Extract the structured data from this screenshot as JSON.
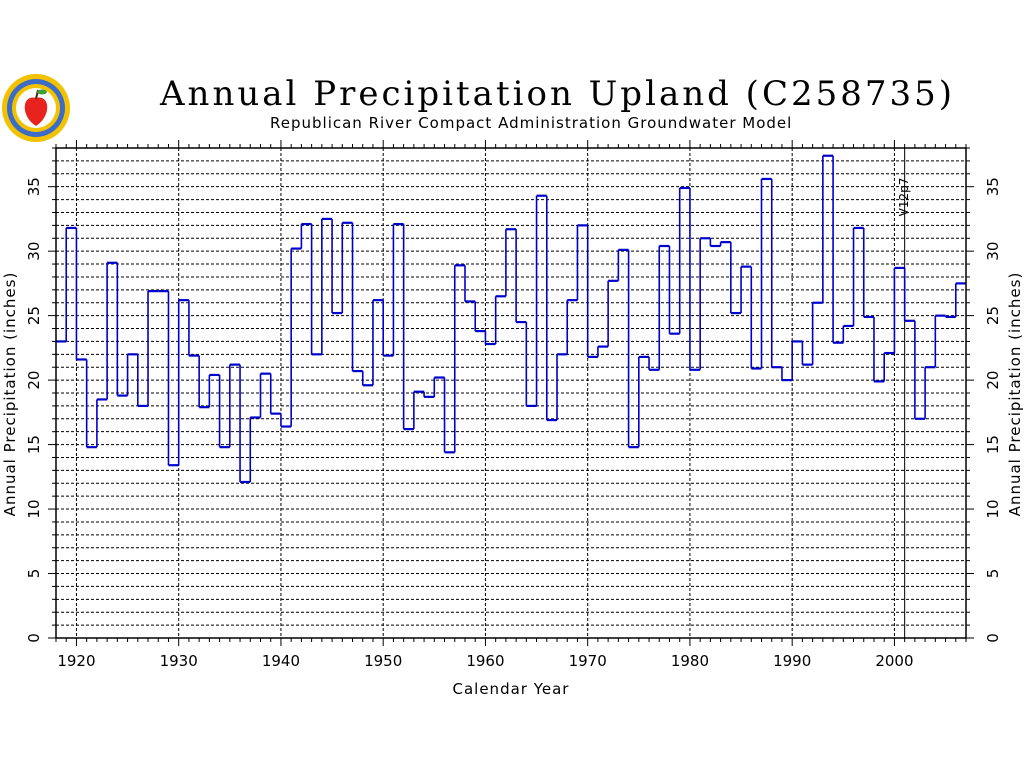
{
  "chart_data": {
    "type": "line",
    "step": true,
    "title": "Annual Precipitation Upland (C258735)",
    "subtitle": "Republican River Compact Administration Groundwater Model",
    "xlabel": "Calendar Year",
    "ylabel": "Annual Precipitation (inches)",
    "ylabel_right": "Annual Precipitation (inches)",
    "xlim": [
      1918,
      2007
    ],
    "ylim": [
      0,
      38
    ],
    "x_ticks": [
      "1920",
      "1930",
      "1940",
      "1950",
      "1960",
      "1970",
      "1980",
      "1990",
      "2000"
    ],
    "y_ticks": [
      "0",
      "5",
      "10",
      "15",
      "20",
      "25",
      "30",
      "35"
    ],
    "grid": true,
    "annotation": {
      "text": "V12p7",
      "x": 2001
    },
    "series": [
      {
        "color": "#0000cc",
        "x": [
          1918,
          1919,
          1920,
          1921,
          1922,
          1923,
          1924,
          1925,
          1926,
          1927,
          1928,
          1929,
          1930,
          1931,
          1932,
          1933,
          1934,
          1935,
          1936,
          1937,
          1938,
          1939,
          1940,
          1941,
          1942,
          1943,
          1944,
          1945,
          1946,
          1947,
          1948,
          1949,
          1950,
          1951,
          1952,
          1953,
          1954,
          1955,
          1956,
          1957,
          1958,
          1959,
          1960,
          1961,
          1962,
          1963,
          1964,
          1965,
          1966,
          1967,
          1968,
          1969,
          1970,
          1971,
          1972,
          1973,
          1974,
          1975,
          1976,
          1977,
          1978,
          1979,
          1980,
          1981,
          1982,
          1983,
          1984,
          1985,
          1986,
          1987,
          1988,
          1989,
          1990,
          1991,
          1992,
          1993,
          1994,
          1995,
          1996,
          1997,
          1998,
          1999,
          2000,
          2001,
          2002,
          2003,
          2004,
          2005,
          2006
        ],
        "y": [
          23.0,
          31.8,
          21.6,
          14.8,
          18.5,
          29.1,
          18.8,
          22.0,
          18.0,
          26.9,
          26.9,
          13.4,
          26.2,
          21.9,
          17.9,
          20.4,
          14.8,
          21.2,
          12.1,
          17.1,
          20.5,
          17.4,
          16.4,
          30.2,
          32.1,
          22.0,
          32.5,
          25.2,
          32.2,
          20.7,
          19.6,
          26.2,
          21.9,
          32.1,
          16.2,
          19.1,
          18.7,
          20.2,
          14.4,
          28.9,
          26.1,
          23.8,
          22.8,
          26.5,
          31.7,
          24.5,
          18.0,
          34.3,
          16.9,
          22.0,
          26.2,
          32.0,
          21.8,
          22.6,
          27.7,
          30.1,
          14.8,
          21.8,
          20.8,
          30.4,
          23.6,
          34.9,
          20.8,
          31.0,
          30.4,
          30.7,
          25.2,
          28.8,
          20.9,
          35.6,
          21.0,
          20.0,
          23.0,
          21.2,
          26.0,
          37.4,
          22.9,
          24.2,
          31.8,
          24.9,
          19.9,
          22.1,
          28.7,
          24.6,
          17.0,
          21.0,
          25.0,
          24.9,
          27.5
        ]
      }
    ]
  }
}
